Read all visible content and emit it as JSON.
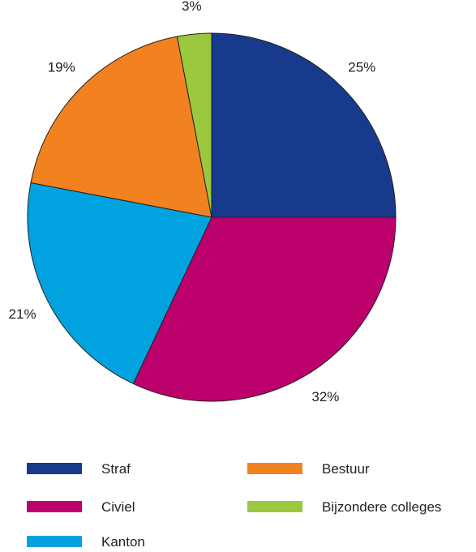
{
  "chart_data": {
    "type": "pie",
    "title": "",
    "slices": [
      {
        "label": "Straf",
        "value": 25,
        "value_label": "25%",
        "color": "#173a8c"
      },
      {
        "label": "Civiel",
        "value": 32,
        "value_label": "32%",
        "color": "#bc006c"
      },
      {
        "label": "Kanton",
        "value": 21,
        "value_label": "21%",
        "color": "#00a3e0"
      },
      {
        "label": "Bestuur",
        "value": 19,
        "value_label": "19%",
        "color": "#f28220"
      },
      {
        "label": "Bijzondere colleges",
        "value": 3,
        "value_label": "3%",
        "color": "#9cc83f"
      }
    ],
    "start": "12 o'clock",
    "direction": "clockwise",
    "legend": {
      "position": "bottom",
      "columns": [
        [
          "Straf",
          "Civiel",
          "Kanton"
        ],
        [
          "Bestuur",
          "Bijzondere colleges"
        ]
      ]
    }
  }
}
